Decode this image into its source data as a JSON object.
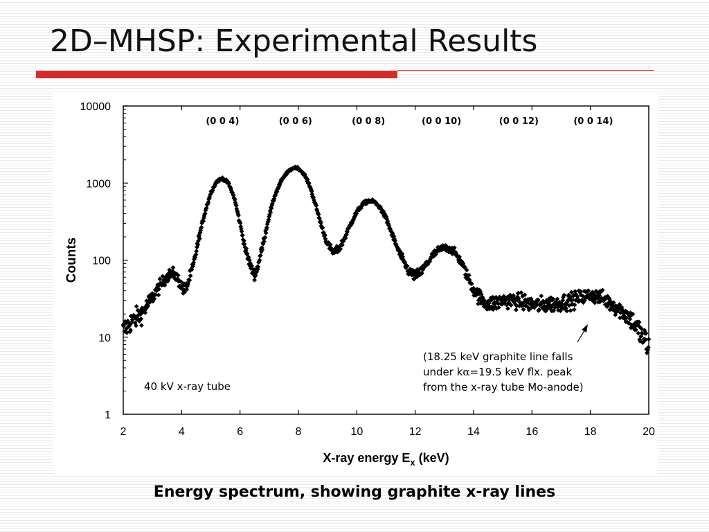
{
  "slide": {
    "title": "2D–MHSP: Experimental Results",
    "caption": "Energy spectrum, showing graphite x-ray lines",
    "accent_color": "#d92a2a"
  },
  "chart_data": {
    "type": "scatter",
    "marker": "diamond",
    "marker_color": "#000000",
    "xlabel": "X-ray energy E",
    "xlabel_subscript": "x",
    "xlabel_unit": " (keV)",
    "ylabel": "Counts",
    "xlim": [
      2,
      20
    ],
    "ylim": [
      1,
      10000
    ],
    "yscale": "log",
    "x_ticks": [
      2,
      4,
      6,
      8,
      10,
      12,
      14,
      16,
      18,
      20
    ],
    "y_ticks": [
      {
        "value": 1,
        "label": "1"
      },
      {
        "value": 10,
        "label": "10"
      },
      {
        "value": 100,
        "label": "100"
      },
      {
        "value": 1000,
        "label": "1000"
      },
      {
        "value": 10000,
        "label": "10000"
      }
    ],
    "grid": false,
    "peak_labels": [
      {
        "x": 5.4,
        "label": "(0 0 4)"
      },
      {
        "x": 7.9,
        "label": "(0 0 6)"
      },
      {
        "x": 10.4,
        "label": "(0 0 8)"
      },
      {
        "x": 12.9,
        "label": "(0 0 10)"
      },
      {
        "x": 15.55,
        "label": "(0 0 12)"
      },
      {
        "x": 18.1,
        "label": "(0 0 14)"
      }
    ],
    "annotations": {
      "tube": "40 kV x-ray tube",
      "note_line1": "(18.25 keV graphite line falls",
      "note_line2_a": "under k",
      "note_alpha": "α",
      "note_line2_b": "=19.5 keV flx. peak",
      "note_line3": "from the x-ray tube Mo-anode)"
    },
    "series": [
      {
        "points": [
          [
            2.0,
            12
          ],
          [
            2.2,
            15
          ],
          [
            2.4,
            17
          ],
          [
            2.6,
            20
          ],
          [
            2.8,
            25
          ],
          [
            3.0,
            33
          ],
          [
            3.2,
            43
          ],
          [
            3.4,
            55
          ],
          [
            3.6,
            66
          ],
          [
            3.7,
            68
          ],
          [
            3.8,
            62
          ],
          [
            3.9,
            55
          ],
          [
            4.0,
            45
          ],
          [
            4.1,
            40
          ],
          [
            4.2,
            48
          ],
          [
            4.4,
            85
          ],
          [
            4.6,
            200
          ],
          [
            4.8,
            420
          ],
          [
            5.0,
            750
          ],
          [
            5.2,
            1050
          ],
          [
            5.4,
            1150
          ],
          [
            5.6,
            1000
          ],
          [
            5.8,
            650
          ],
          [
            6.0,
            300
          ],
          [
            6.2,
            130
          ],
          [
            6.4,
            75
          ],
          [
            6.5,
            65
          ],
          [
            6.6,
            80
          ],
          [
            6.8,
            170
          ],
          [
            7.0,
            380
          ],
          [
            7.2,
            700
          ],
          [
            7.4,
            1050
          ],
          [
            7.6,
            1350
          ],
          [
            7.8,
            1550
          ],
          [
            7.9,
            1600
          ],
          [
            8.0,
            1550
          ],
          [
            8.2,
            1300
          ],
          [
            8.4,
            900
          ],
          [
            8.6,
            500
          ],
          [
            8.8,
            270
          ],
          [
            9.0,
            160
          ],
          [
            9.2,
            125
          ],
          [
            9.4,
            140
          ],
          [
            9.6,
            200
          ],
          [
            9.8,
            300
          ],
          [
            10.0,
            420
          ],
          [
            10.2,
            530
          ],
          [
            10.4,
            590
          ],
          [
            10.6,
            570
          ],
          [
            10.8,
            480
          ],
          [
            11.0,
            350
          ],
          [
            11.2,
            220
          ],
          [
            11.4,
            140
          ],
          [
            11.6,
            95
          ],
          [
            11.8,
            70
          ],
          [
            12.0,
            62
          ],
          [
            12.2,
            70
          ],
          [
            12.4,
            90
          ],
          [
            12.6,
            115
          ],
          [
            12.8,
            135
          ],
          [
            13.0,
            145
          ],
          [
            13.2,
            140
          ],
          [
            13.4,
            120
          ],
          [
            13.6,
            90
          ],
          [
            13.8,
            60
          ],
          [
            14.0,
            42
          ],
          [
            14.2,
            33
          ],
          [
            14.4,
            28
          ],
          [
            14.6,
            27
          ],
          [
            14.8,
            28
          ],
          [
            15.0,
            30
          ],
          [
            15.2,
            30
          ],
          [
            15.4,
            30
          ],
          [
            15.6,
            29
          ],
          [
            15.8,
            28
          ],
          [
            16.0,
            27
          ],
          [
            16.2,
            26
          ],
          [
            16.4,
            26
          ],
          [
            16.6,
            27
          ],
          [
            16.8,
            27
          ],
          [
            17.0,
            28
          ],
          [
            17.2,
            29
          ],
          [
            17.4,
            30
          ],
          [
            17.6,
            32
          ],
          [
            17.8,
            34
          ],
          [
            18.0,
            35
          ],
          [
            18.2,
            34
          ],
          [
            18.4,
            32
          ],
          [
            18.6,
            29
          ],
          [
            18.8,
            26
          ],
          [
            19.0,
            23
          ],
          [
            19.2,
            20
          ],
          [
            19.4,
            17
          ],
          [
            19.6,
            13
          ],
          [
            19.8,
            10
          ],
          [
            20.0,
            7
          ]
        ]
      }
    ]
  }
}
